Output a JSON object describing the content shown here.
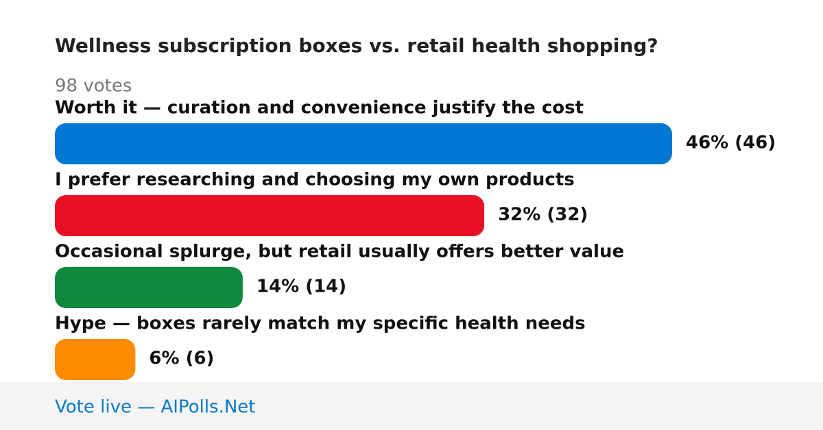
{
  "chart_data": {
    "type": "bar",
    "title": "Wellness subscription boxes vs. retail health shopping?",
    "subtitle": "98 votes",
    "categories": [
      "Worth it — curation and convenience justify the cost",
      "I prefer researching and choosing my own products",
      "Occasional splurge, but retail usually offers better value",
      "Hype — boxes rarely match my specific health needs"
    ],
    "values": [
      46,
      32,
      14,
      6
    ],
    "value_labels": [
      "46% (46)",
      "32% (32)",
      "14% (14)",
      "6% (6)"
    ],
    "colors": [
      "#0078d4",
      "#e81123",
      "#10893e",
      "#ff8c00"
    ],
    "footer": "Vote live — AIPolls.Net"
  }
}
